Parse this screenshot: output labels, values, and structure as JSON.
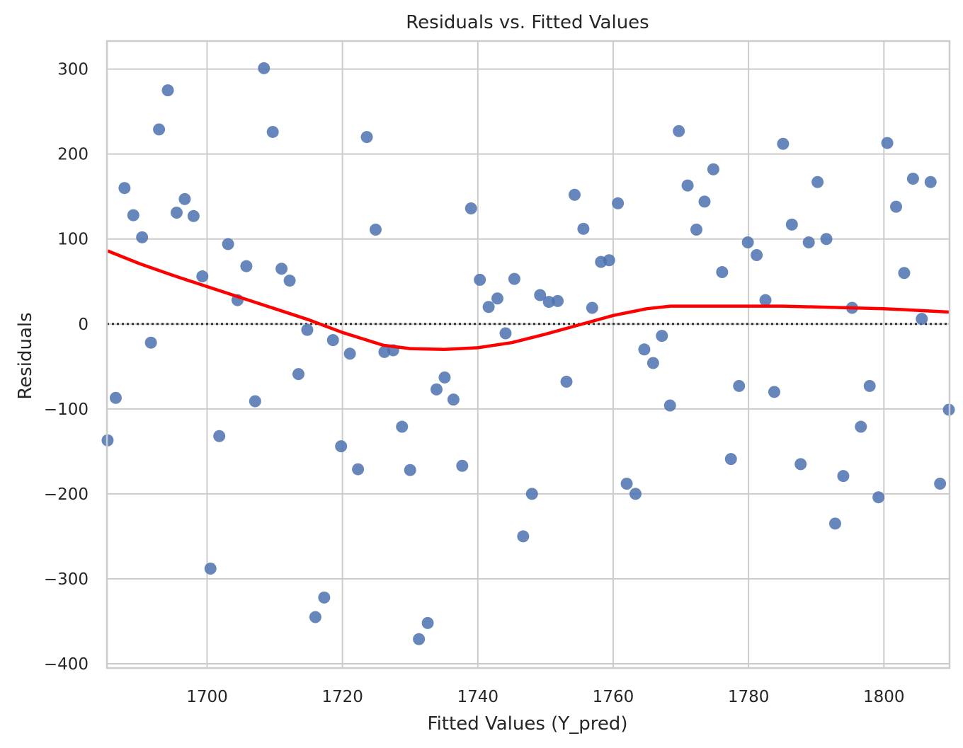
{
  "chart_data": {
    "type": "scatter",
    "title": "Residuals vs. Fitted Values",
    "xlabel": "Fitted Values (Y_pred)",
    "ylabel": "Residuals",
    "xlim": [
      1685.2,
      1809.7
    ],
    "ylim": [
      -405,
      333
    ],
    "xticks": [
      1700,
      1720,
      1740,
      1760,
      1780,
      1800
    ],
    "yticks": [
      -400,
      -300,
      -200,
      -100,
      0,
      100,
      200,
      300
    ],
    "xtick_labels": [
      "1700",
      "1720",
      "1740",
      "1760",
      "1780",
      "1800"
    ],
    "ytick_labels": [
      "−400",
      "−300",
      "−200",
      "−100",
      "0",
      "100",
      "200",
      "300"
    ],
    "grid": true,
    "reference_line": {
      "y": 0,
      "style": "dotted",
      "color": "#333333"
    },
    "colors": {
      "points": "#4c72b0",
      "smooth": "#ff0000",
      "grid": "#cccccc"
    },
    "points": [
      {
        "x": 1685.3,
        "y": -137
      },
      {
        "x": 1686.5,
        "y": -87
      },
      {
        "x": 1687.8,
        "y": 160
      },
      {
        "x": 1689.1,
        "y": 128
      },
      {
        "x": 1690.4,
        "y": 102
      },
      {
        "x": 1691.7,
        "y": -22
      },
      {
        "x": 1692.9,
        "y": 229
      },
      {
        "x": 1694.2,
        "y": 275
      },
      {
        "x": 1695.5,
        "y": 131
      },
      {
        "x": 1696.7,
        "y": 147
      },
      {
        "x": 1698.0,
        "y": 127
      },
      {
        "x": 1699.3,
        "y": 56
      },
      {
        "x": 1700.5,
        "y": -288
      },
      {
        "x": 1701.8,
        "y": -132
      },
      {
        "x": 1703.1,
        "y": 94
      },
      {
        "x": 1704.5,
        "y": 28
      },
      {
        "x": 1705.8,
        "y": 68
      },
      {
        "x": 1707.1,
        "y": -91
      },
      {
        "x": 1708.4,
        "y": 301
      },
      {
        "x": 1709.7,
        "y": 226
      },
      {
        "x": 1711.0,
        "y": 65
      },
      {
        "x": 1712.2,
        "y": 51
      },
      {
        "x": 1713.5,
        "y": -59
      },
      {
        "x": 1714.8,
        "y": -7
      },
      {
        "x": 1716.0,
        "y": -345
      },
      {
        "x": 1717.3,
        "y": -322
      },
      {
        "x": 1718.6,
        "y": -19
      },
      {
        "x": 1719.8,
        "y": -144
      },
      {
        "x": 1721.1,
        "y": -35
      },
      {
        "x": 1722.3,
        "y": -171
      },
      {
        "x": 1723.6,
        "y": 220
      },
      {
        "x": 1724.9,
        "y": 111
      },
      {
        "x": 1726.2,
        "y": -33
      },
      {
        "x": 1727.5,
        "y": -31
      },
      {
        "x": 1728.8,
        "y": -121
      },
      {
        "x": 1730.0,
        "y": -172
      },
      {
        "x": 1731.3,
        "y": -371
      },
      {
        "x": 1732.6,
        "y": -352
      },
      {
        "x": 1733.9,
        "y": -77
      },
      {
        "x": 1735.1,
        "y": -63
      },
      {
        "x": 1736.4,
        "y": -89
      },
      {
        "x": 1737.7,
        "y": -167
      },
      {
        "x": 1739.0,
        "y": 136
      },
      {
        "x": 1740.3,
        "y": 52
      },
      {
        "x": 1741.6,
        "y": 20
      },
      {
        "x": 1742.9,
        "y": 30
      },
      {
        "x": 1744.1,
        "y": -11
      },
      {
        "x": 1745.4,
        "y": 53
      },
      {
        "x": 1746.7,
        "y": -250
      },
      {
        "x": 1748.0,
        "y": -200
      },
      {
        "x": 1749.2,
        "y": 34
      },
      {
        "x": 1750.5,
        "y": 26
      },
      {
        "x": 1751.8,
        "y": 27
      },
      {
        "x": 1753.1,
        "y": -68
      },
      {
        "x": 1754.3,
        "y": 152
      },
      {
        "x": 1755.6,
        "y": 112
      },
      {
        "x": 1756.9,
        "y": 19
      },
      {
        "x": 1758.2,
        "y": 73
      },
      {
        "x": 1759.4,
        "y": 75
      },
      {
        "x": 1760.7,
        "y": 142
      },
      {
        "x": 1762.0,
        "y": -188
      },
      {
        "x": 1763.3,
        "y": -200
      },
      {
        "x": 1764.6,
        "y": -30
      },
      {
        "x": 1765.9,
        "y": -46
      },
      {
        "x": 1767.2,
        "y": -14
      },
      {
        "x": 1768.4,
        "y": -96
      },
      {
        "x": 1769.7,
        "y": 227
      },
      {
        "x": 1771.0,
        "y": 163
      },
      {
        "x": 1772.3,
        "y": 111
      },
      {
        "x": 1773.5,
        "y": 144
      },
      {
        "x": 1774.8,
        "y": 182
      },
      {
        "x": 1776.1,
        "y": 61
      },
      {
        "x": 1777.4,
        "y": -159
      },
      {
        "x": 1778.6,
        "y": -73
      },
      {
        "x": 1779.9,
        "y": 96
      },
      {
        "x": 1781.2,
        "y": 81
      },
      {
        "x": 1782.5,
        "y": 28
      },
      {
        "x": 1783.8,
        "y": -80
      },
      {
        "x": 1785.1,
        "y": 212
      },
      {
        "x": 1786.4,
        "y": 117
      },
      {
        "x": 1787.7,
        "y": -165
      },
      {
        "x": 1788.9,
        "y": 96
      },
      {
        "x": 1790.2,
        "y": 167
      },
      {
        "x": 1791.5,
        "y": 100
      },
      {
        "x": 1792.8,
        "y": -235
      },
      {
        "x": 1794.0,
        "y": -179
      },
      {
        "x": 1795.3,
        "y": 19
      },
      {
        "x": 1796.6,
        "y": -121
      },
      {
        "x": 1797.9,
        "y": -73
      },
      {
        "x": 1799.2,
        "y": -204
      },
      {
        "x": 1800.5,
        "y": 213
      },
      {
        "x": 1801.8,
        "y": 138
      },
      {
        "x": 1803.0,
        "y": 60
      },
      {
        "x": 1804.3,
        "y": 171
      },
      {
        "x": 1805.6,
        "y": 6
      },
      {
        "x": 1806.9,
        "y": 167
      },
      {
        "x": 1808.3,
        "y": -188
      },
      {
        "x": 1809.6,
        "y": -101
      }
    ],
    "smooth_line": [
      {
        "x": 1685.3,
        "y": 86
      },
      {
        "x": 1690,
        "y": 71
      },
      {
        "x": 1695,
        "y": 57
      },
      {
        "x": 1700,
        "y": 44
      },
      {
        "x": 1705,
        "y": 31
      },
      {
        "x": 1710,
        "y": 18
      },
      {
        "x": 1715,
        "y": 5
      },
      {
        "x": 1720,
        "y": -10
      },
      {
        "x": 1726,
        "y": -25
      },
      {
        "x": 1730,
        "y": -29
      },
      {
        "x": 1735,
        "y": -30
      },
      {
        "x": 1740,
        "y": -28
      },
      {
        "x": 1745,
        "y": -22
      },
      {
        "x": 1750,
        "y": -12
      },
      {
        "x": 1755,
        "y": -1
      },
      {
        "x": 1760,
        "y": 10
      },
      {
        "x": 1765,
        "y": 18
      },
      {
        "x": 1768.5,
        "y": 21
      },
      {
        "x": 1775,
        "y": 21
      },
      {
        "x": 1780,
        "y": 21
      },
      {
        "x": 1785,
        "y": 21
      },
      {
        "x": 1790,
        "y": 20
      },
      {
        "x": 1795,
        "y": 19
      },
      {
        "x": 1800,
        "y": 18
      },
      {
        "x": 1805,
        "y": 16
      },
      {
        "x": 1809.7,
        "y": 14
      }
    ]
  }
}
